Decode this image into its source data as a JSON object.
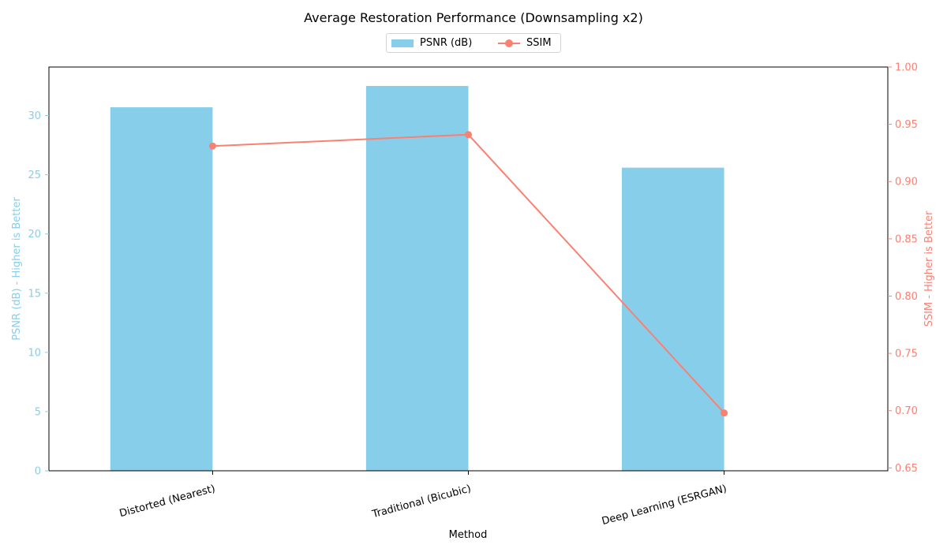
{
  "chart_data": {
    "type": "bar",
    "title": "Average Restoration Performance (Downsampling x2)",
    "xlabel": "Method",
    "categories": [
      "Distorted (Nearest)",
      "Traditional (Bicubic)",
      "Deep Learning (ESRGAN)"
    ],
    "series": [
      {
        "name": "PSNR (dB)",
        "type": "bar",
        "axis": "left",
        "values": [
          30.7,
          32.5,
          25.6
        ],
        "color": "#87CEEB"
      },
      {
        "name": "SSIM",
        "type": "line",
        "marker": "circle",
        "axis": "right",
        "values": [
          0.931,
          0.941,
          0.698
        ],
        "color": "#FA8072"
      }
    ],
    "y_left": {
      "label": "PSNR (dB) - Higher is Better",
      "ylim": [
        0,
        34.1
      ],
      "ticks": [
        0,
        5,
        10,
        15,
        20,
        25,
        30
      ],
      "color": "#87CEEB"
    },
    "y_right": {
      "label": "SSIM - Higher is Better",
      "ylim": [
        0.6475,
        1.0
      ],
      "ticks": [
        "0.65",
        "0.70",
        "0.75",
        "0.80",
        "0.85",
        "0.90",
        "0.95",
        "1.00"
      ],
      "color": "#FA8072"
    },
    "grid": false,
    "legend": "top-center"
  }
}
